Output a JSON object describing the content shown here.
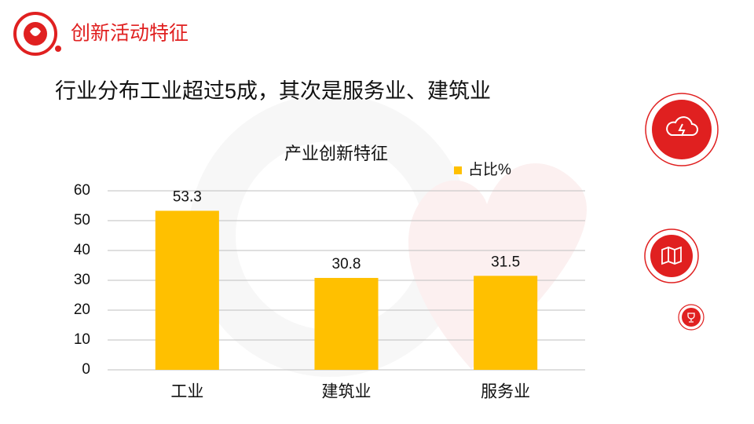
{
  "header": {
    "title": "创新活动特征"
  },
  "headline": "行业分布工业超过5成，其次是服务业、建筑业",
  "chart_data": {
    "type": "bar",
    "title": "产业创新特征",
    "categories": [
      "工业",
      "建筑业",
      "服务业"
    ],
    "series": [
      {
        "name": "占比%",
        "color": "#ffc000",
        "values": [
          53.3,
          30.8,
          31.5
        ]
      }
    ],
    "ylim": [
      0,
      60
    ],
    "yticks": [
      0,
      10,
      20,
      30,
      40,
      50,
      60
    ],
    "grid": true,
    "legend": "top-right"
  }
}
